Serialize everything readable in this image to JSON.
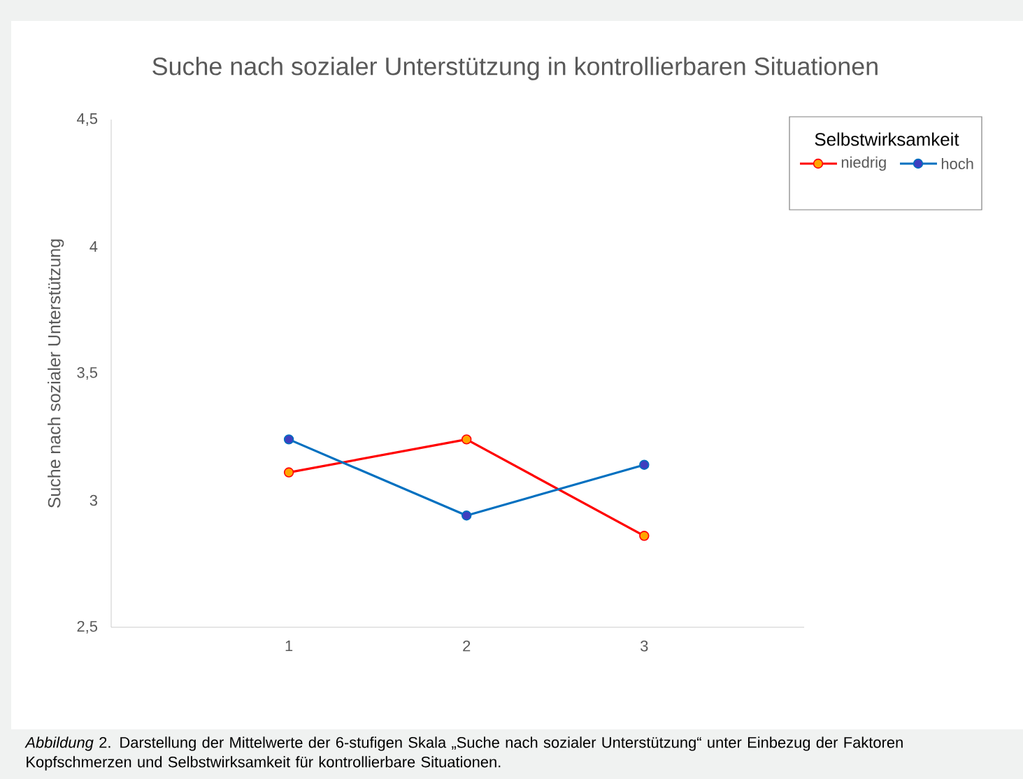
{
  "chart_data": {
    "type": "line",
    "title": "Suche nach sozialer Unterstützung in kontrollierbaren Situationen",
    "ylabel": "Suche nach sozialer Unterstützung",
    "legend_title": "Selbstwirksamkeit",
    "legend": "top right",
    "marker": "circle",
    "line_style": "solid",
    "x": [
      1,
      2,
      3
    ],
    "xlim": [
      0,
      3.9
    ],
    "xticks": [
      1,
      2,
      3
    ],
    "ylim": [
      2.5,
      4.5
    ],
    "yticks": [
      {
        "value": 2.5,
        "label": "2,5"
      },
      {
        "value": 3,
        "label": "3"
      },
      {
        "value": 3.5,
        "label": "3,5"
      },
      {
        "value": 4,
        "label": "4"
      },
      {
        "value": 4.5,
        "label": "4,5"
      }
    ],
    "series": [
      {
        "name": "niedrig",
        "color": "#ff0000",
        "values": [
          3.11,
          3.24,
          2.86
        ]
      },
      {
        "name": "hoch",
        "color": "#0070c0",
        "values": [
          3.24,
          2.94,
          3.14
        ]
      }
    ],
    "annotations": [
      "*Abbildung* 2. Darstellung der Mittelwerte der 6-stufigen Skala „Suche nach sozialer Unterstützung“ unter Einbezug der Faktoren Kopfschmerzen und Selbstwirksamkeit für kontrollierbare Situationen."
    ]
  }
}
